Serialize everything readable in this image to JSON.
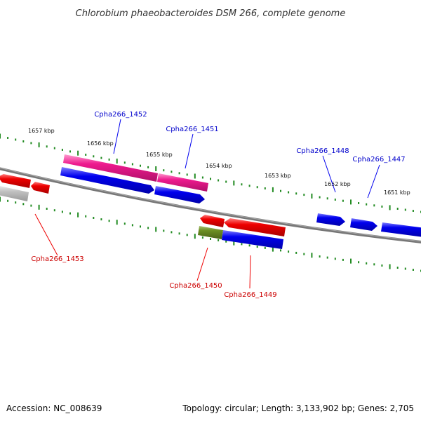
{
  "title": "Chlorobium phaeobacteroides DSM 266, complete genome",
  "footer": {
    "accession": "Accession: NC_008639",
    "summary": "Topology: circular; Length: 3,133,902 bp; Genes: 2,705"
  },
  "colors": {
    "forward_gene": "#0000ee",
    "reverse_gene": "#ee0000",
    "forward_label": "#0000cc",
    "reverse_label": "#cc0000",
    "pink_feature": "#ee1a8e",
    "olive_feature": "#6b8e23",
    "gray_feature": "#bbbbbb",
    "genome_line": "#777777",
    "ticks": "#228b22"
  },
  "kbp_labels": [
    "1657 kbp",
    "1656 kbp",
    "1655 kbp",
    "1654 kbp",
    "1653 kbp",
    "1652 kbp",
    "1651 kbp"
  ],
  "gene_labels": [
    {
      "name": "Cpha266_1452",
      "strand": "forward"
    },
    {
      "name": "Cpha266_1451",
      "strand": "forward"
    },
    {
      "name": "Cpha266_1448",
      "strand": "forward"
    },
    {
      "name": "Cpha266_1447",
      "strand": "forward"
    },
    {
      "name": "Cpha266_1453",
      "strand": "reverse"
    },
    {
      "name": "Cpha266_1450",
      "strand": "reverse"
    },
    {
      "name": "Cpha266_1449",
      "strand": "reverse"
    }
  ]
}
